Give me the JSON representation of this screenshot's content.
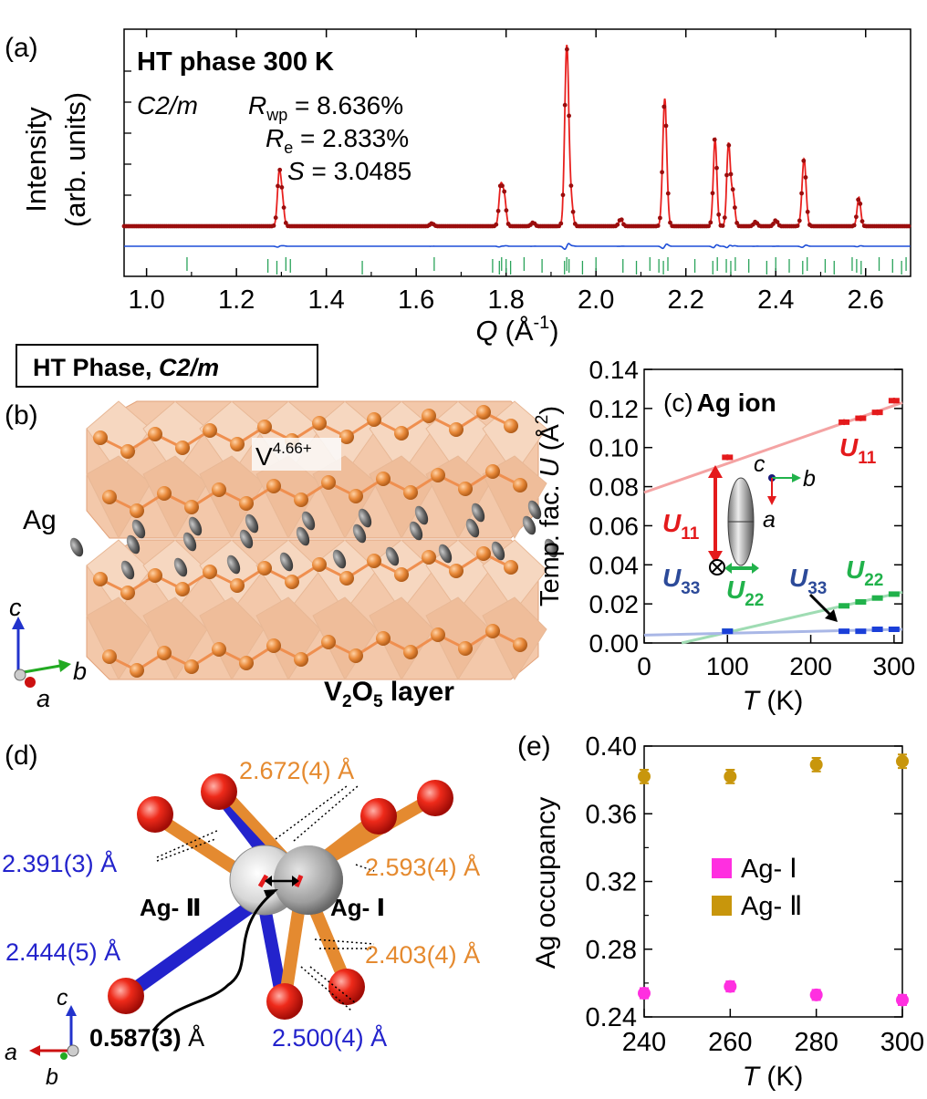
{
  "panel_labels": {
    "a": "(a)",
    "b": "(b)",
    "c": "(c)",
    "d": "(d)",
    "e": "(e)"
  },
  "colors": {
    "obs": "#9b0d0d",
    "calc": "#e8201e",
    "diff": "#1f4fd8",
    "ticks": "#2aa35a",
    "u11": "#e41a1c",
    "u22": "#21b24b",
    "u33": "#1a3fd9",
    "ag1": "#ff2fe0",
    "ag2": "#c8960c",
    "orange": "#e58a2f",
    "blue": "#2323cc"
  },
  "chart_data": [
    {
      "type": "line",
      "id": "a",
      "title": "HT phase 300 K",
      "space_group": "C2/m",
      "stats": {
        "rwp_label": "R",
        "rwp_sub": "wp",
        "rwp_value": " = 8.636%",
        "re_label": "R",
        "re_sub": "e",
        "re_value": " = 2.833%",
        "s_label": "S",
        "s_value": " = 3.0485"
      },
      "ylabel_line1": "Intensity",
      "ylabel_line2": "(arb. units)",
      "xlabel_main": "Q",
      "xlabel_unit": "(Å",
      "xlabel_exp": "-1",
      "xlabel_close": ")",
      "xlim": [
        0.95,
        2.7
      ],
      "ylim": [
        0,
        100
      ],
      "xticks": [
        "1.0",
        "1.2",
        "1.4",
        "1.6",
        "1.8",
        "2.0",
        "2.2",
        "2.4",
        "2.6"
      ],
      "xtick_values": [
        1.0,
        1.2,
        1.4,
        1.6,
        1.8,
        2.0,
        2.2,
        2.4,
        2.6
      ],
      "baseline": 1.0,
      "diff_offset": -9,
      "peaks": [
        {
          "q": 1.295,
          "h": 21,
          "w": 0.004
        },
        {
          "q": 1.302,
          "h": 10,
          "w": 0.004
        },
        {
          "q": 1.635,
          "h": 1.2,
          "w": 0.004
        },
        {
          "q": 1.788,
          "h": 16,
          "w": 0.004
        },
        {
          "q": 1.796,
          "h": 12,
          "w": 0.004
        },
        {
          "q": 1.86,
          "h": 1.5,
          "w": 0.004
        },
        {
          "q": 1.935,
          "h": 75,
          "w": 0.0045
        },
        {
          "q": 1.945,
          "h": 9,
          "w": 0.004
        },
        {
          "q": 2.055,
          "h": 3,
          "w": 0.004
        },
        {
          "q": 2.153,
          "h": 53,
          "w": 0.0045
        },
        {
          "q": 2.265,
          "h": 36,
          "w": 0.004
        },
        {
          "q": 2.295,
          "h": 34,
          "w": 0.004
        },
        {
          "q": 2.305,
          "h": 13,
          "w": 0.004
        },
        {
          "q": 2.355,
          "h": 1.8,
          "w": 0.004
        },
        {
          "q": 2.4,
          "h": 2.5,
          "w": 0.004
        },
        {
          "q": 2.463,
          "h": 28,
          "w": 0.0045
        },
        {
          "q": 2.585,
          "h": 12,
          "w": 0.004
        }
      ],
      "bragg_ticks": [
        1.09,
        1.27,
        1.29,
        1.31,
        1.32,
        1.48,
        1.64,
        1.77,
        1.785,
        1.79,
        1.8,
        1.81,
        1.84,
        1.88,
        1.93,
        1.935,
        1.94,
        1.97,
        2.0,
        2.06,
        2.09,
        2.12,
        2.14,
        2.15,
        2.16,
        2.22,
        2.26,
        2.27,
        2.29,
        2.3,
        2.31,
        2.34,
        2.38,
        2.4,
        2.43,
        2.46,
        2.47,
        2.51,
        2.53,
        2.57,
        2.58,
        2.59,
        2.63,
        2.66,
        2.68,
        2.69
      ]
    },
    {
      "type": "line",
      "id": "c",
      "title": "(c)",
      "title_bold": "Ag ion",
      "ylabel_text": "Temp. fac. ",
      "ylabel_u": "U",
      "ylabel_unit": " (Å",
      "ylabel_exp": "2",
      "ylabel_close": ")",
      "xlabel_t": "T",
      "xlabel_unit": " (K)",
      "xlim": [
        0,
        310
      ],
      "ylim": [
        0,
        0.14
      ],
      "xticks": [
        "0",
        "100",
        "200",
        "300"
      ],
      "xtick_values": [
        0,
        100,
        200,
        300
      ],
      "yticks": [
        "0.00",
        "0.02",
        "0.04",
        "0.06",
        "0.08",
        "0.10",
        "0.12",
        "0.14"
      ],
      "ytick_values": [
        0.0,
        0.02,
        0.04,
        0.06,
        0.08,
        0.1,
        0.12,
        0.14
      ],
      "series": [
        {
          "name": "U11",
          "label": "U",
          "sub": "11",
          "x": [
            100,
            240,
            260,
            280,
            300
          ],
          "y": [
            0.095,
            0.113,
            0.115,
            0.118,
            0.124
          ],
          "err": [
            0.0015,
            0.0015,
            0.0015,
            0.0015,
            0.0015
          ],
          "fit": [
            [
              0,
              0.077
            ],
            [
              310,
              0.123
            ]
          ]
        },
        {
          "name": "U22",
          "label": "U",
          "sub": "22",
          "x": [
            100,
            240,
            260,
            280,
            300
          ],
          "y": [
            0.006,
            0.019,
            0.021,
            0.023,
            0.025
          ],
          "err": [
            0.001,
            0.001,
            0.001,
            0.001,
            0.001
          ],
          "fit": [
            [
              45,
              0.0
            ],
            [
              310,
              0.026
            ]
          ]
        },
        {
          "name": "U33",
          "label": "U",
          "sub": "33",
          "x": [
            100,
            240,
            260,
            280,
            300
          ],
          "y": [
            0.006,
            0.006,
            0.006,
            0.007,
            0.007
          ],
          "err": [
            0.001,
            0.001,
            0.001,
            0.001,
            0.001
          ],
          "fit": [
            [
              0,
              0.004
            ],
            [
              310,
              0.007
            ]
          ]
        }
      ],
      "inset_axes": {
        "c": "c",
        "b": "b",
        "a": "a"
      },
      "inset_labels": {
        "u11": "U",
        "u11_sub": "11",
        "u33": "U",
        "u33_sub": "33",
        "u22": "U",
        "u22_sub": "22"
      }
    },
    {
      "type": "scatter",
      "id": "e",
      "title": "(e)",
      "ylabel": "Ag occupancy",
      "xlabel_t": "T",
      "xlabel_unit": " (K)",
      "xlim": [
        240,
        300
      ],
      "ylim": [
        0.24,
        0.4
      ],
      "xticks": [
        "240",
        "260",
        "280",
        "300"
      ],
      "xtick_values": [
        240,
        260,
        280,
        300
      ],
      "yticks": [
        "0.24",
        "0.28",
        "0.32",
        "0.36",
        "0.40"
      ],
      "ytick_values": [
        0.24,
        0.28,
        0.32,
        0.36,
        0.4
      ],
      "series": [
        {
          "name": "Ag- Ⅰ",
          "x": [
            240,
            260,
            280,
            300
          ],
          "y": [
            0.254,
            0.258,
            0.253,
            0.25
          ],
          "err": [
            0.003,
            0.003,
            0.003,
            0.003
          ]
        },
        {
          "name": "Ag- Ⅱ",
          "x": [
            240,
            260,
            280,
            300
          ],
          "y": [
            0.382,
            0.382,
            0.389,
            0.391
          ],
          "err": [
            0.004,
            0.004,
            0.004,
            0.004
          ]
        }
      ]
    }
  ],
  "panel_b": {
    "title_a": "HT Phase, ",
    "title_b": "C2/m",
    "v_label": "V",
    "v_sup": "4.66+",
    "ag_label": "Ag",
    "layer_v": "V",
    "layer_sub1": "2",
    "layer_o": "O",
    "layer_sub2": "5",
    "layer_text": " layer",
    "axes": {
      "c": "c",
      "b": "b",
      "a": "a"
    }
  },
  "panel_d": {
    "ag1": "Ag- Ⅰ",
    "ag2": "Ag- Ⅱ",
    "d1": "2.672(4) Å",
    "d2": "2.593(4) Å",
    "d3": "2.403(4) Å",
    "d4": "2.391(3) Å",
    "d5": "2.444(5) Å",
    "d6": "2.500(4) Å",
    "d7_bold": "0.587(3)",
    "d7_unit": " Å",
    "axes": {
      "c": "c",
      "a": "a",
      "b": "b"
    }
  }
}
